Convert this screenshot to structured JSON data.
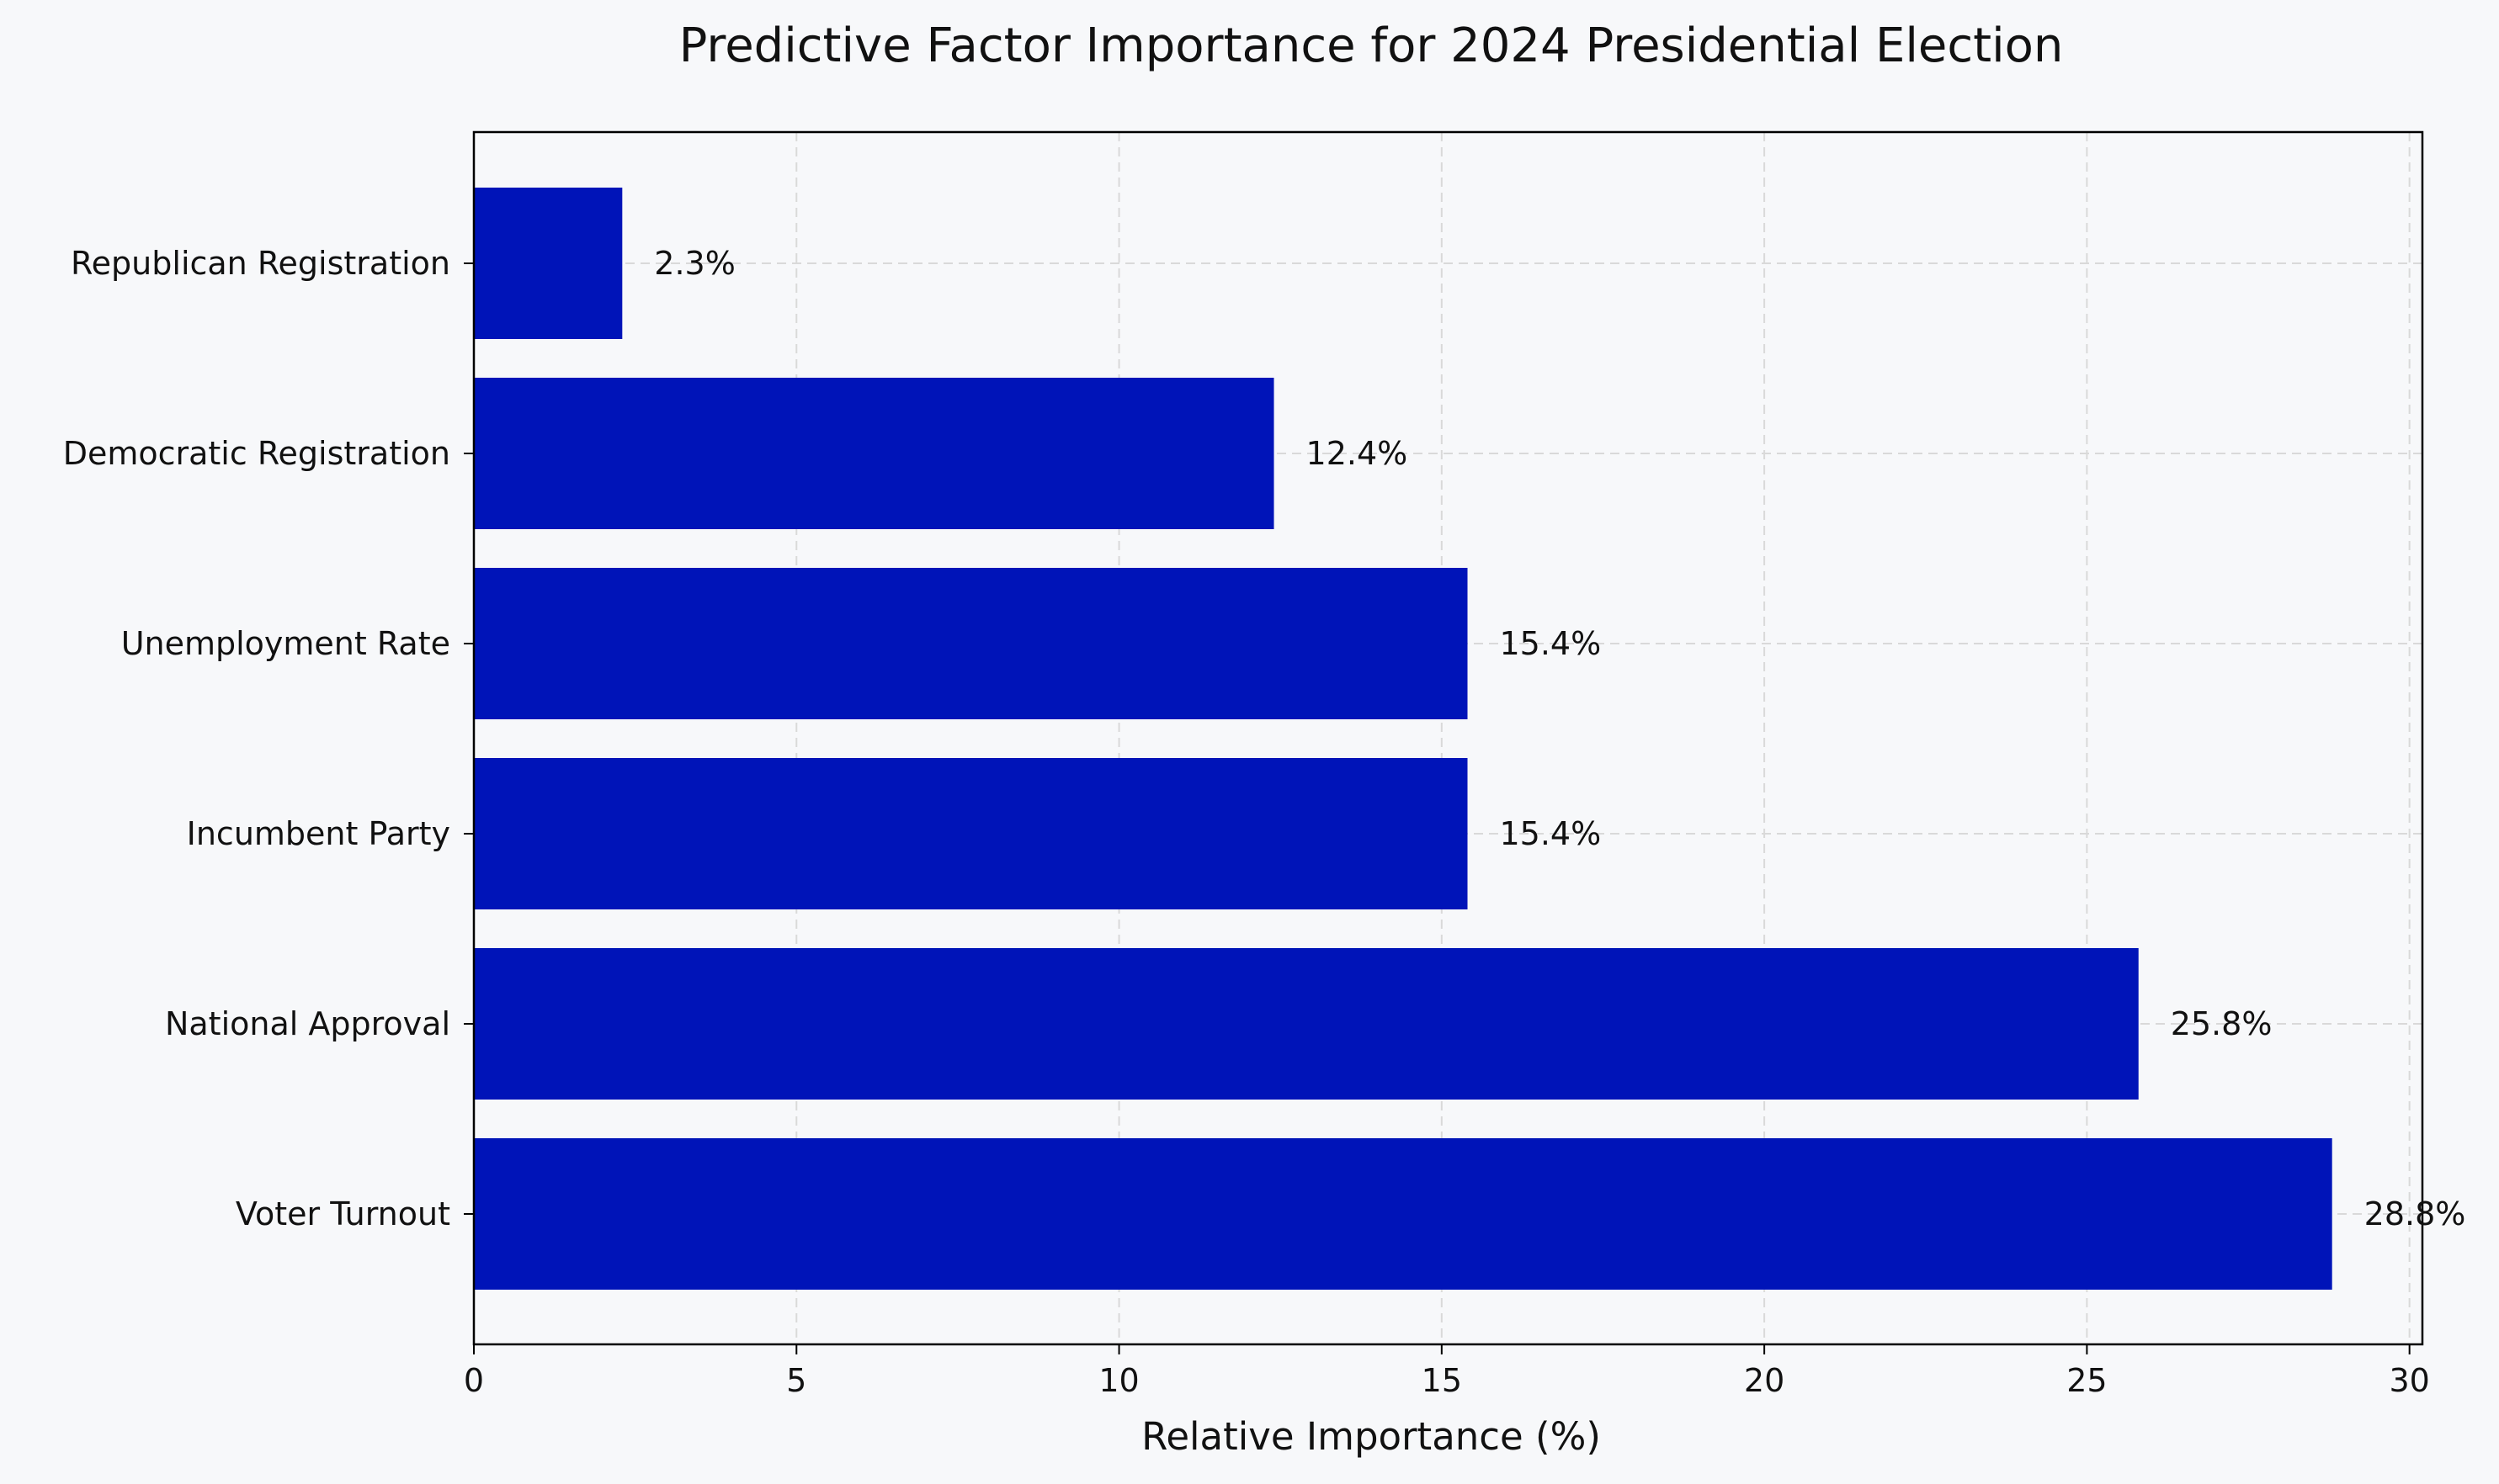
{
  "chart_data": {
    "type": "bar",
    "orientation": "horizontal",
    "title": "Predictive Factor Importance for 2024 Presidential Election",
    "xlabel": "Relative Importance (%)",
    "ylabel": "",
    "xlim": [
      0,
      30.2
    ],
    "xticks": [
      0,
      5,
      10,
      15,
      20,
      25,
      30
    ],
    "xtick_labels": [
      "0",
      "5",
      "10",
      "15",
      "20",
      "25",
      "30"
    ],
    "grid": true,
    "legend": "none",
    "categories": [
      "Voter Turnout",
      "National Approval",
      "Incumbent Party",
      "Unemployment Rate",
      "Democratic Registration",
      "Republican Registration"
    ],
    "values": [
      28.8,
      25.8,
      15.4,
      15.4,
      12.4,
      2.3
    ],
    "data_labels": [
      "28.8%",
      "25.8%",
      "15.4%",
      "15.4%",
      "12.4%",
      "2.3%"
    ],
    "colors": {
      "bar": "#0014b8",
      "background": "#f7f8fa",
      "grid": "#d9d9d9",
      "axis": "#000000"
    }
  }
}
